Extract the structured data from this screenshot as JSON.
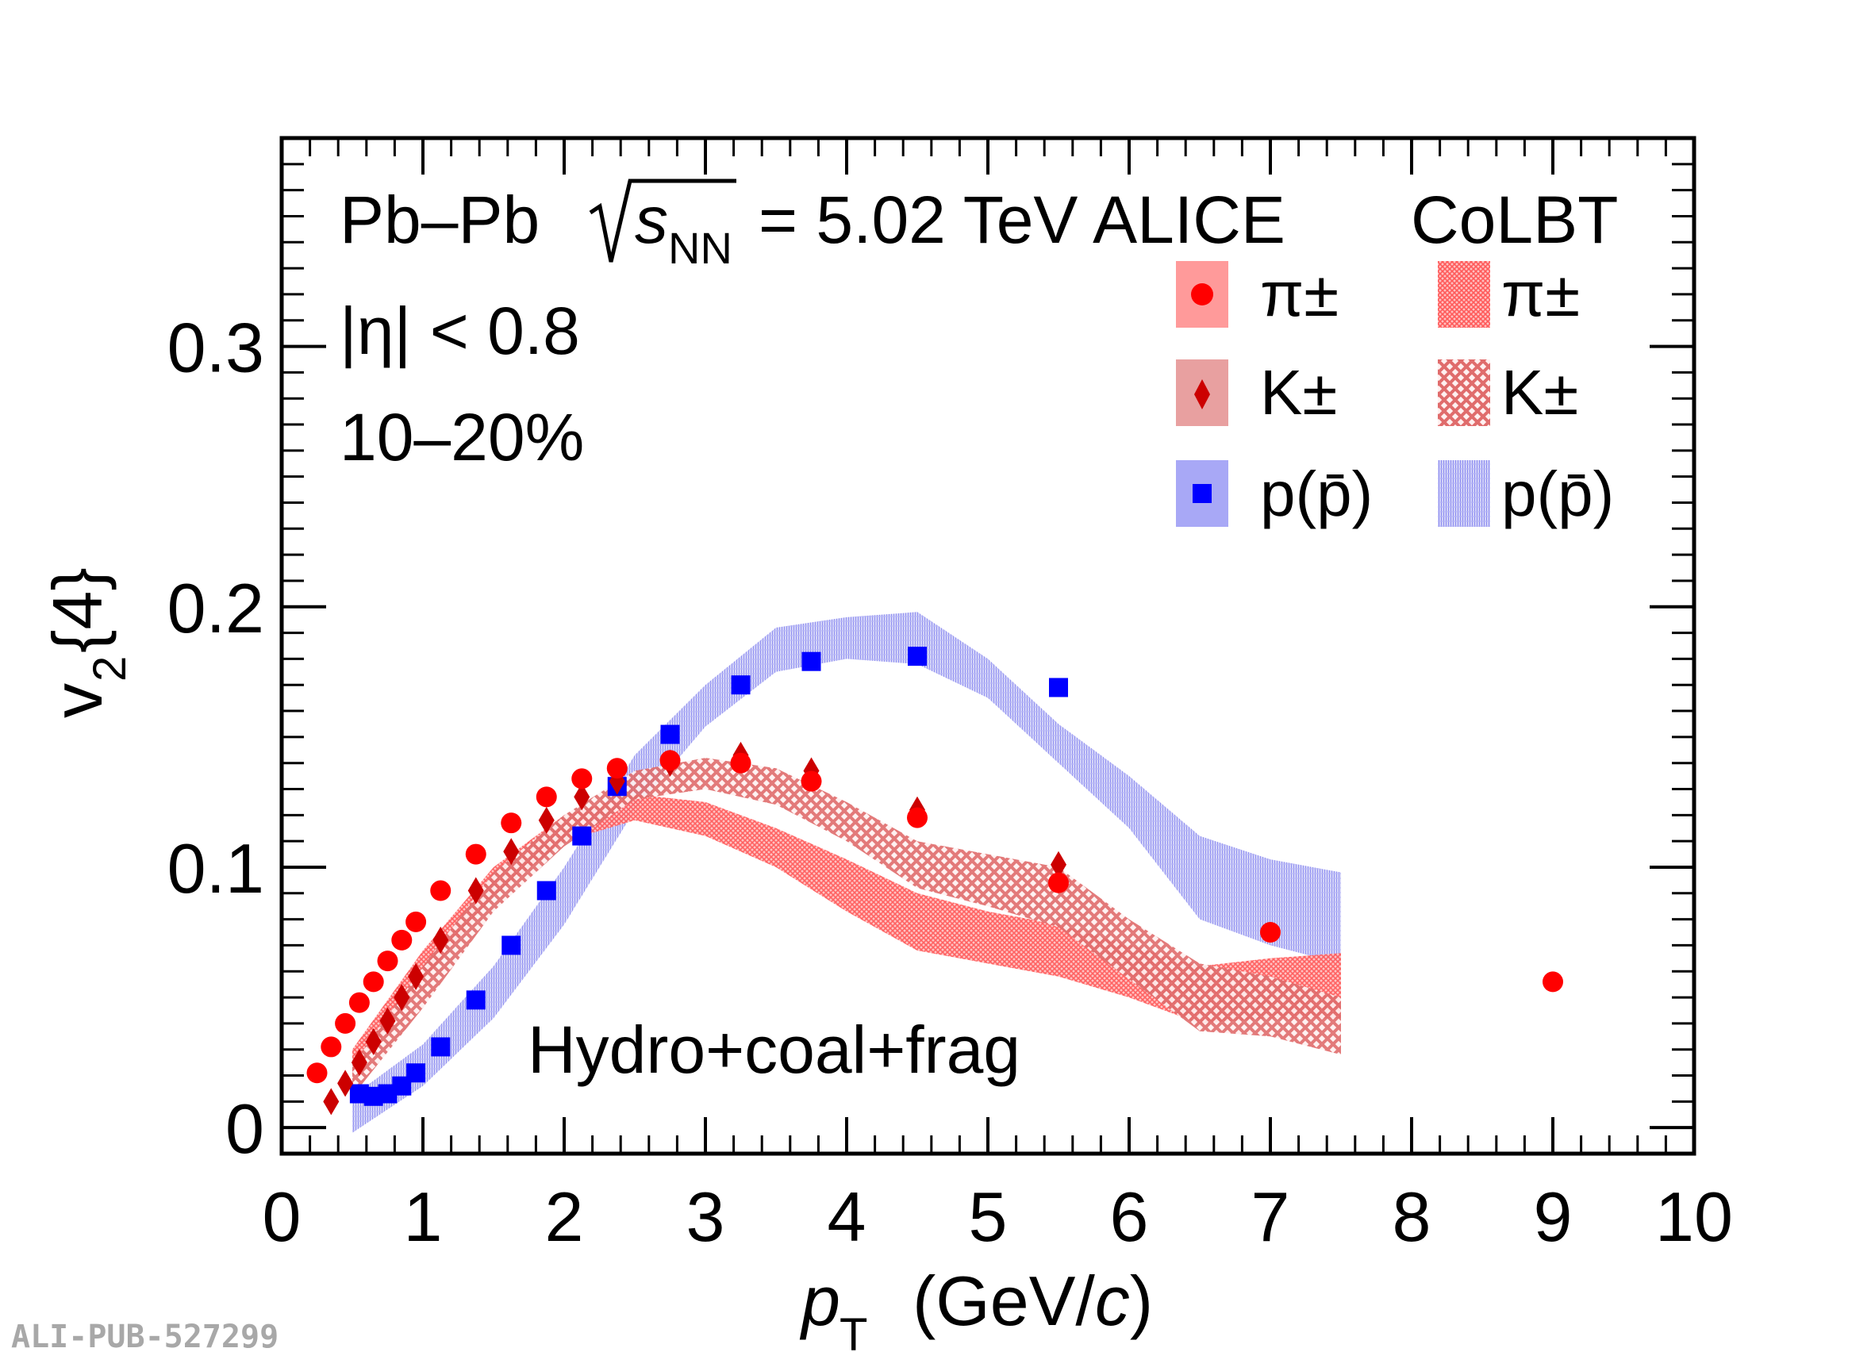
{
  "colors": {
    "pion": "#ff0000",
    "kaon": "#cc0000",
    "proton": "#0000ff",
    "pion_band": "#ff8080",
    "kaon_band": "#e07878",
    "proton_band": "#8f8ff2"
  },
  "text": {
    "system": "Pb–Pb",
    "energy": "= 5.02 TeV ALICE",
    "model": "CoLBT",
    "eta": "|η| < 0.8",
    "centrality": "10–20%",
    "model_label": "Hydro+coal+frag",
    "tag": "ALI-PUB-527299"
  },
  "legend": {
    "data": [
      {
        "label": "π±",
        "marker": "circle"
      },
      {
        "label": "K±",
        "marker": "diamond"
      },
      {
        "label": "p(p̄)",
        "marker": "square"
      }
    ],
    "model": [
      {
        "label": "π±"
      },
      {
        "label": "K±"
      },
      {
        "label": "p(p̄)"
      }
    ]
  },
  "chart_data": {
    "type": "scatter",
    "xlabel": "p_T (GeV/c)",
    "ylabel": "v_2{4}",
    "xlim": [
      0,
      10
    ],
    "ylim": [
      -0.01,
      0.38
    ],
    "xticks": [
      "0",
      "1",
      "2",
      "3",
      "4",
      "5",
      "6",
      "7",
      "8",
      "9",
      "10"
    ],
    "yticks": [
      "0",
      "0.1",
      "0.2",
      "0.3"
    ],
    "series": [
      {
        "name": "π±",
        "marker": "circle",
        "x": [
          0.25,
          0.35,
          0.45,
          0.55,
          0.65,
          0.75,
          0.85,
          0.95,
          1.125,
          1.375,
          1.625,
          1.875,
          2.125,
          2.375,
          2.75,
          3.25,
          3.75,
          4.5,
          5.5,
          7.0,
          9.0
        ],
        "y": [
          0.021,
          0.031,
          0.04,
          0.048,
          0.056,
          0.064,
          0.072,
          0.079,
          0.091,
          0.105,
          0.117,
          0.127,
          0.134,
          0.138,
          0.141,
          0.14,
          0.133,
          0.119,
          0.094,
          0.075,
          0.056
        ]
      },
      {
        "name": "K±",
        "marker": "diamond",
        "x": [
          0.35,
          0.45,
          0.55,
          0.65,
          0.75,
          0.85,
          0.95,
          1.125,
          1.375,
          1.625,
          1.875,
          2.125,
          2.375,
          2.75,
          3.25,
          3.75,
          4.5,
          5.5
        ],
        "y": [
          0.01,
          0.017,
          0.025,
          0.033,
          0.041,
          0.05,
          0.058,
          0.072,
          0.091,
          0.106,
          0.118,
          0.127,
          0.133,
          0.14,
          0.143,
          0.137,
          0.122,
          0.101
        ]
      },
      {
        "name": "p(p̄)",
        "marker": "square",
        "x": [
          0.55,
          0.65,
          0.75,
          0.85,
          0.95,
          1.125,
          1.375,
          1.625,
          1.875,
          2.125,
          2.375,
          2.75,
          3.25,
          3.75,
          4.5,
          5.5
        ],
        "y": [
          0.013,
          0.012,
          0.013,
          0.016,
          0.021,
          0.031,
          0.049,
          0.07,
          0.091,
          0.112,
          0.131,
          0.151,
          0.17,
          0.179,
          0.181,
          0.169
        ]
      }
    ],
    "bands": [
      {
        "name": "CoLBT π±",
        "x": [
          0.5,
          1.0,
          1.5,
          2.0,
          2.5,
          3.0,
          3.5,
          4.0,
          4.5,
          5.0,
          5.5,
          6.0,
          6.5,
          7.0,
          7.5
        ],
        "upper": [
          0.03,
          0.068,
          0.1,
          0.12,
          0.128,
          0.125,
          0.115,
          0.103,
          0.09,
          0.083,
          0.078,
          0.07,
          0.062,
          0.065,
          0.067
        ],
        "lower": [
          0.02,
          0.056,
          0.089,
          0.11,
          0.118,
          0.112,
          0.1,
          0.083,
          0.068,
          0.063,
          0.058,
          0.05,
          0.04,
          0.042,
          0.042
        ]
      },
      {
        "name": "CoLBT K±",
        "x": [
          0.5,
          1.0,
          1.5,
          2.0,
          2.5,
          3.0,
          3.5,
          4.0,
          4.5,
          5.0,
          5.5,
          6.0,
          6.5,
          7.0,
          7.5
        ],
        "upper": [
          0.024,
          0.062,
          0.098,
          0.12,
          0.137,
          0.142,
          0.138,
          0.125,
          0.11,
          0.105,
          0.1,
          0.08,
          0.063,
          0.058,
          0.05
        ],
        "lower": [
          0.012,
          0.046,
          0.083,
          0.108,
          0.126,
          0.13,
          0.124,
          0.11,
          0.092,
          0.085,
          0.077,
          0.057,
          0.037,
          0.035,
          0.028
        ]
      },
      {
        "name": "CoLBT p(p̄)",
        "x": [
          0.5,
          1.0,
          1.5,
          2.0,
          2.5,
          3.0,
          3.5,
          4.0,
          4.5,
          5.0,
          5.5,
          6.0,
          6.5,
          7.0,
          7.5
        ],
        "upper": [
          0.012,
          0.032,
          0.062,
          0.1,
          0.143,
          0.17,
          0.192,
          0.196,
          0.198,
          0.18,
          0.155,
          0.135,
          0.112,
          0.103,
          0.098
        ],
        "lower": [
          -0.002,
          0.016,
          0.042,
          0.078,
          0.122,
          0.154,
          0.175,
          0.18,
          0.178,
          0.165,
          0.14,
          0.115,
          0.08,
          0.07,
          0.063
        ]
      }
    ]
  }
}
